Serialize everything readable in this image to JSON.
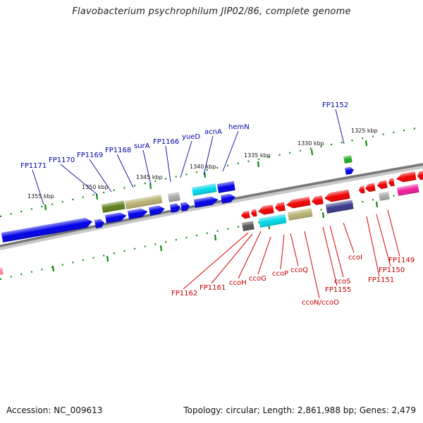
{
  "title": "Flavobacterium psychrophilum JIP02/86, complete genome",
  "footer": {
    "accession": "Accession: NC_009613",
    "summary": "Topology: circular; Length: 2,861,988 bp; Genes: 2,479"
  },
  "colors": {
    "blue": "#0000e6",
    "red": "#ee0000",
    "olive": "#5f7f1a",
    "khaki": "#b7b071",
    "cyan": "#00d6e6",
    "gray": "#a8a8a8",
    "darkgray": "#555555",
    "navy": "#3a3a8a",
    "green": "#22aa22",
    "magenta": "#ee1d9b",
    "pink": "#ff8aa0",
    "label_blue": "#0000a8",
    "label_red": "#c00000",
    "tick_green": "#118811",
    "backbone": "#7a7a7a"
  },
  "scale_labels": [
    "1325 kbp",
    "1330 kbp",
    "1335 kbp",
    "1340 kbp",
    "1345 kbp",
    "1350 kbp",
    "1355 kbp"
  ],
  "upper_labels": [
    "FP1171",
    "FP1170",
    "FP1169",
    "FP1168",
    "surA",
    "FP1166",
    "yueD",
    "acnA",
    "hemN",
    "FP1152"
  ],
  "lower_labels": [
    "FP1162",
    "FP1161",
    "ccoH",
    "ccoG",
    "ccoP",
    "ccoQ",
    "ccoN/ccoO",
    "FP1155",
    "ccoS",
    "ccoI",
    "FP1151",
    "FP1150",
    "FP1149"
  ]
}
